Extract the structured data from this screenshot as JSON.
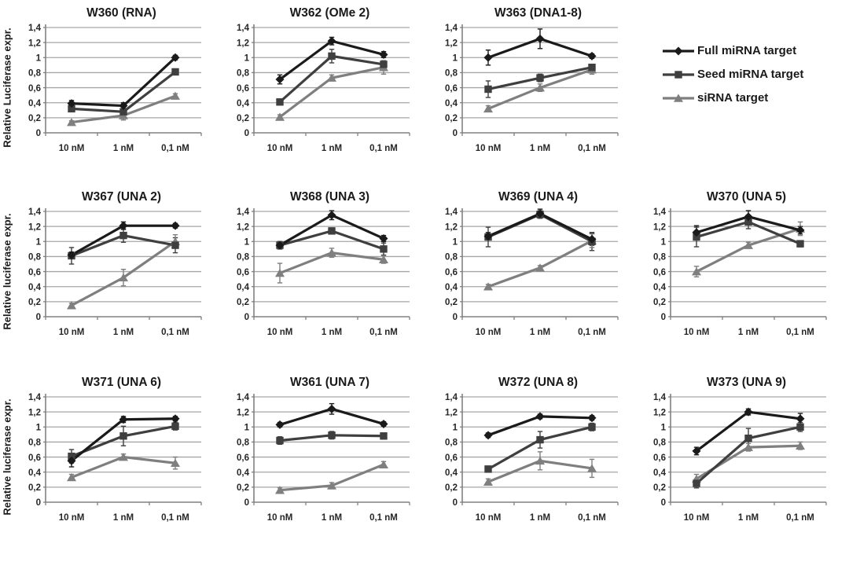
{
  "figure": {
    "legend": [
      {
        "name": "Full miRNA target",
        "marker": "diamond",
        "color": "#1a1a1a"
      },
      {
        "name": "Seed miRNA target",
        "marker": "square",
        "color": "#3f3f3f"
      },
      {
        "name": "siRNA target",
        "marker": "triangle",
        "color": "#7f7f7f"
      }
    ],
    "axis": {
      "categories": [
        "10 nM",
        "1 nM",
        "0,1 nM"
      ],
      "y_ticks": [
        0,
        0.2,
        0.4,
        0.6,
        0.8,
        1,
        1.2,
        1.4
      ],
      "y_tick_labels": [
        "0",
        "0,2",
        "0,4",
        "0,6",
        "0,8",
        "1",
        "1,2",
        "1,4"
      ],
      "ylim": [
        0,
        1.4
      ],
      "grid_color": "#a6a6a6",
      "axis_color": "#808080",
      "legend_position": "right"
    },
    "row_ylabels": [
      "Relative Luciferase expr.",
      "Relative luciferase expr.",
      "Relative luciferase expr."
    ]
  },
  "chart_data": [
    {
      "type": "line",
      "title": "W360 (RNA)",
      "categories": [
        "10 nM",
        "1 nM",
        "0,1 nM"
      ],
      "ylim": [
        0,
        1.4
      ],
      "series": [
        {
          "name": "Full miRNA target",
          "values": [
            0.39,
            0.36,
            1.0
          ],
          "err": [
            0.04,
            0.04,
            0.03
          ]
        },
        {
          "name": "Seed miRNA target",
          "values": [
            0.32,
            0.28,
            0.81
          ],
          "err": [
            0.04,
            0.04,
            0.04
          ]
        },
        {
          "name": "siRNA target",
          "values": [
            0.14,
            0.23,
            0.49
          ],
          "err": [
            0.02,
            0.06,
            0.03
          ]
        }
      ]
    },
    {
      "type": "line",
      "title": "W362 (OMe 2)",
      "categories": [
        "10 nM",
        "1 nM",
        "0,1 nM"
      ],
      "ylim": [
        0,
        1.4
      ],
      "series": [
        {
          "name": "Full miRNA target",
          "values": [
            0.71,
            1.22,
            1.04
          ],
          "err": [
            0.06,
            0.05,
            0.04
          ]
        },
        {
          "name": "Seed miRNA target",
          "values": [
            0.41,
            1.02,
            0.91
          ],
          "err": [
            0.03,
            0.09,
            0.05
          ]
        },
        {
          "name": "siRNA target",
          "values": [
            0.21,
            0.73,
            0.87
          ],
          "err": [
            0.03,
            0.04,
            0.09
          ]
        }
      ]
    },
    {
      "type": "line",
      "title": "W363 (DNA1-8)",
      "categories": [
        "10 nM",
        "1 nM",
        "0,1 nM"
      ],
      "ylim": [
        0,
        1.4
      ],
      "series": [
        {
          "name": "Full miRNA target",
          "values": [
            1.0,
            1.25,
            1.02
          ],
          "err": [
            0.1,
            0.13,
            0.03
          ]
        },
        {
          "name": "Seed miRNA target",
          "values": [
            0.58,
            0.73,
            0.87
          ],
          "err": [
            0.11,
            0.05,
            0.04
          ]
        },
        {
          "name": "siRNA target",
          "values": [
            0.32,
            0.6,
            0.84
          ],
          "err": [
            0.04,
            0.05,
            0.06
          ]
        }
      ]
    },
    {
      "type": "line",
      "title": "W367 (UNA 2)",
      "categories": [
        "10 nM",
        "1 nM",
        "0,1 nM"
      ],
      "ylim": [
        0,
        1.4
      ],
      "series": [
        {
          "name": "Full miRNA target",
          "values": [
            0.82,
            1.21,
            1.21
          ],
          "err": [
            0.04,
            0.05,
            0.03
          ]
        },
        {
          "name": "Seed miRNA target",
          "values": [
            0.81,
            1.08,
            0.95
          ],
          "err": [
            0.11,
            0.09,
            0.1
          ]
        },
        {
          "name": "siRNA target",
          "values": [
            0.15,
            0.52,
            1.0
          ],
          "err": [
            0.03,
            0.11,
            0.09
          ]
        }
      ]
    },
    {
      "type": "line",
      "title": "W368 (UNA 3)",
      "categories": [
        "10 nM",
        "1 nM",
        "0,1 nM"
      ],
      "ylim": [
        0,
        1.4
      ],
      "series": [
        {
          "name": "Full miRNA target",
          "values": [
            0.95,
            1.35,
            1.04
          ],
          "err": [
            0.05,
            0.06,
            0.04
          ]
        },
        {
          "name": "Seed miRNA target",
          "values": [
            0.95,
            1.14,
            0.9
          ],
          "err": [
            0.05,
            0.04,
            0.08
          ]
        },
        {
          "name": "siRNA target",
          "values": [
            0.58,
            0.85,
            0.76
          ],
          "err": [
            0.13,
            0.06,
            0.05
          ]
        }
      ]
    },
    {
      "type": "line",
      "title": "W369 (UNA 4)",
      "categories": [
        "10 nM",
        "1 nM",
        "0,1 nM"
      ],
      "ylim": [
        0,
        1.4
      ],
      "series": [
        {
          "name": "Full miRNA target",
          "values": [
            1.07,
            1.37,
            1.03
          ],
          "err": [
            0.05,
            0.06,
            0.08
          ]
        },
        {
          "name": "Seed miRNA target",
          "values": [
            1.06,
            1.36,
            1.0
          ],
          "err": [
            0.13,
            0.05,
            0.12
          ]
        },
        {
          "name": "siRNA target",
          "values": [
            0.4,
            0.65,
            1.01
          ],
          "err": [
            0.03,
            0.03,
            0.09
          ]
        }
      ]
    },
    {
      "type": "line",
      "title": "W370 (UNA 5)",
      "categories": [
        "10 nM",
        "1 nM",
        "0,1 nM"
      ],
      "ylim": [
        0,
        1.4
      ],
      "series": [
        {
          "name": "Full miRNA target",
          "values": [
            1.12,
            1.33,
            1.15
          ],
          "err": [
            0.09,
            0.08,
            0.05
          ]
        },
        {
          "name": "Seed miRNA target",
          "values": [
            1.06,
            1.26,
            0.97
          ],
          "err": [
            0.13,
            0.09,
            0.04
          ]
        },
        {
          "name": "siRNA target",
          "values": [
            0.6,
            0.95,
            1.17
          ],
          "err": [
            0.07,
            0.04,
            0.09
          ]
        }
      ]
    },
    {
      "type": "line",
      "title": "W371 (UNA 6)",
      "categories": [
        "10 nM",
        "1 nM",
        "0,1 nM"
      ],
      "ylim": [
        0,
        1.4
      ],
      "series": [
        {
          "name": "Full miRNA target",
          "values": [
            0.55,
            1.1,
            1.11
          ],
          "err": [
            0.08,
            0.04,
            0.03
          ]
        },
        {
          "name": "Seed miRNA target",
          "values": [
            0.61,
            0.88,
            1.01
          ],
          "err": [
            0.09,
            0.13,
            0.05
          ]
        },
        {
          "name": "siRNA target",
          "values": [
            0.33,
            0.6,
            0.52
          ],
          "err": [
            0.04,
            0.04,
            0.08
          ]
        }
      ]
    },
    {
      "type": "line",
      "title": "W361 (UNA 7)",
      "categories": [
        "10 nM",
        "1 nM",
        "0,1 nM"
      ],
      "ylim": [
        0,
        1.4
      ],
      "series": [
        {
          "name": "Full miRNA target",
          "values": [
            1.03,
            1.24,
            1.04
          ],
          "err": [
            0.03,
            0.07,
            0.03
          ]
        },
        {
          "name": "Seed miRNA target",
          "values": [
            0.82,
            0.89,
            0.88
          ],
          "err": [
            0.05,
            0.05,
            0.04
          ]
        },
        {
          "name": "siRNA target",
          "values": [
            0.16,
            0.22,
            0.5
          ],
          "err": [
            0.03,
            0.04,
            0.04
          ]
        }
      ]
    },
    {
      "type": "line",
      "title": "W372 (UNA 8)",
      "categories": [
        "10 nM",
        "1 nM",
        "0,1 nM"
      ],
      "ylim": [
        0,
        1.4
      ],
      "series": [
        {
          "name": "Full miRNA target",
          "values": [
            0.89,
            1.14,
            1.12
          ],
          "err": [
            0.03,
            0.03,
            0.03
          ]
        },
        {
          "name": "Seed miRNA target",
          "values": [
            0.44,
            0.83,
            1.0
          ],
          "err": [
            0.04,
            0.11,
            0.05
          ]
        },
        {
          "name": "siRNA target",
          "values": [
            0.27,
            0.55,
            0.45
          ],
          "err": [
            0.04,
            0.12,
            0.12
          ]
        }
      ]
    },
    {
      "type": "line",
      "title": "W373 (UNA 9)",
      "categories": [
        "10 nM",
        "1 nM",
        "0,1 nM"
      ],
      "ylim": [
        0,
        1.4
      ],
      "series": [
        {
          "name": "Full miRNA target",
          "values": [
            0.68,
            1.2,
            1.11
          ],
          "err": [
            0.05,
            0.04,
            0.07
          ]
        },
        {
          "name": "Seed miRNA target",
          "values": [
            0.25,
            0.85,
            1.0
          ],
          "err": [
            0.06,
            0.13,
            0.06
          ]
        },
        {
          "name": "siRNA target",
          "values": [
            0.31,
            0.73,
            0.75
          ],
          "err": [
            0.06,
            0.05,
            0.05
          ]
        }
      ]
    }
  ]
}
